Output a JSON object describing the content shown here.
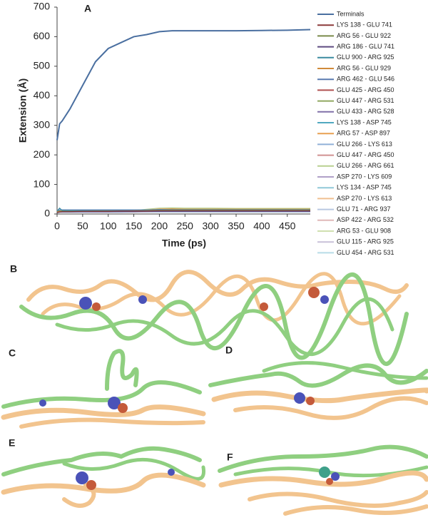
{
  "chart_data": {
    "type": "line",
    "panel_label": "A",
    "x_label": "Time (ps)",
    "y_label": "Extension (Å)",
    "xlim": [
      0,
      495
    ],
    "xticks": [
      0,
      50,
      100,
      150,
      200,
      250,
      300,
      350,
      400,
      450
    ],
    "ylim": [
      0,
      700
    ],
    "yticks": [
      0,
      100,
      200,
      300,
      400,
      500,
      600,
      700
    ],
    "x": [
      0,
      5,
      10,
      25,
      50,
      75,
      100,
      125,
      150,
      175,
      200,
      225,
      250,
      300,
      350,
      400,
      450,
      495
    ],
    "series": [
      {
        "name": "Terminals",
        "color": "#4a6fa0",
        "values": [
          250,
          305,
          315,
          355,
          435,
          515,
          560,
          580,
          600,
          607,
          617,
          620,
          620,
          620,
          620,
          621,
          622,
          624
        ]
      },
      {
        "name": "LYS 138 - GLU 741",
        "color": "#8b3a3a",
        "values": [
          5,
          7,
          8,
          8,
          9,
          9,
          9,
          10,
          10,
          10,
          11,
          11,
          11,
          11,
          11,
          11,
          11,
          11
        ]
      },
      {
        "name": "ARG 56 - GLU 922",
        "color": "#7a8a4a",
        "values": [
          6,
          8,
          9,
          9,
          9,
          10,
          10,
          10,
          10,
          11,
          12,
          12,
          12,
          12,
          12,
          12,
          12,
          12
        ]
      },
      {
        "name": "ARG 186 - GLU 741",
        "color": "#5e4a80",
        "values": [
          4,
          6,
          7,
          7,
          8,
          8,
          8,
          8,
          8,
          9,
          9,
          9,
          9,
          9,
          9,
          9,
          9,
          9
        ]
      },
      {
        "name": "GLU 900 - ARG 925",
        "color": "#3a8aa0",
        "values": [
          10,
          20,
          12,
          11,
          11,
          11,
          11,
          11,
          11,
          12,
          13,
          13,
          13,
          13,
          13,
          13,
          13,
          13
        ]
      },
      {
        "name": "ARG 56 - GLU 929",
        "color": "#d08a3a",
        "values": [
          7,
          9,
          10,
          10,
          10,
          10,
          10,
          10,
          11,
          12,
          13,
          14,
          14,
          14,
          14,
          14,
          14,
          14
        ]
      },
      {
        "name": "ARG 462 - GLU 546",
        "color": "#5a7ab0",
        "values": [
          12,
          14,
          14,
          14,
          14,
          14,
          14,
          14,
          14,
          14,
          15,
          15,
          15,
          15,
          15,
          15,
          15,
          15
        ]
      },
      {
        "name": "GLU 425 - ARG 450",
        "color": "#b05050",
        "values": [
          8,
          9,
          9,
          9,
          9,
          9,
          9,
          9,
          9,
          10,
          10,
          10,
          10,
          10,
          10,
          10,
          10,
          10
        ]
      },
      {
        "name": "GLU 447 - ARG 531",
        "color": "#90a860",
        "values": [
          9,
          10,
          11,
          11,
          11,
          11,
          11,
          11,
          11,
          13,
          15,
          16,
          16,
          16,
          16,
          16,
          16,
          16
        ]
      },
      {
        "name": "GLU 433 - ARG 528",
        "color": "#8070a8",
        "values": [
          6,
          7,
          7,
          7,
          7,
          7,
          7,
          8,
          8,
          8,
          9,
          9,
          9,
          9,
          9,
          9,
          9,
          9
        ]
      },
      {
        "name": "LYS 138 - ASP 745",
        "color": "#50a8c0",
        "values": [
          11,
          12,
          12,
          12,
          12,
          12,
          12,
          12,
          12,
          13,
          13,
          13,
          13,
          13,
          13,
          13,
          13,
          13
        ]
      },
      {
        "name": "ARG 57 - ASP 897",
        "color": "#e8a050",
        "values": [
          8,
          9,
          9,
          9,
          9,
          9,
          10,
          10,
          10,
          14,
          17,
          18,
          17,
          17,
          17,
          17,
          17,
          17
        ]
      },
      {
        "name": "GLU 266 - LYS 613",
        "color": "#90b0d8",
        "values": [
          5,
          6,
          6,
          6,
          6,
          6,
          6,
          6,
          7,
          7,
          7,
          7,
          7,
          7,
          7,
          7,
          7,
          7
        ]
      },
      {
        "name": "GLU 447 - ARG 450",
        "color": "#d09090",
        "values": [
          7,
          8,
          8,
          8,
          8,
          8,
          8,
          8,
          8,
          9,
          9,
          9,
          9,
          9,
          9,
          9,
          9,
          9
        ]
      },
      {
        "name": "GLU 266 - ARG 661",
        "color": "#b8d090",
        "values": [
          9,
          10,
          10,
          10,
          10,
          10,
          10,
          11,
          12,
          16,
          20,
          21,
          20,
          20,
          19,
          19,
          19,
          19
        ]
      },
      {
        "name": "ASP 270 - LYS 609",
        "color": "#b0a0c8",
        "values": [
          6,
          7,
          7,
          7,
          7,
          7,
          7,
          7,
          7,
          8,
          8,
          8,
          8,
          8,
          8,
          8,
          8,
          8
        ]
      },
      {
        "name": "LYS 134 - ASP 745",
        "color": "#90c8d8",
        "values": [
          13,
          14,
          14,
          14,
          14,
          14,
          14,
          14,
          14,
          14,
          14,
          14,
          14,
          14,
          14,
          14,
          14,
          14
        ]
      },
      {
        "name": "ASP 270 - LYS 613",
        "color": "#f0c090",
        "values": [
          7,
          8,
          8,
          8,
          8,
          8,
          8,
          8,
          9,
          11,
          13,
          14,
          14,
          14,
          14,
          14,
          14,
          14
        ]
      },
      {
        "name": "GLU 71 - ARG 937",
        "color": "#b8c8e0",
        "values": [
          10,
          11,
          11,
          11,
          11,
          11,
          11,
          11,
          11,
          12,
          12,
          12,
          12,
          12,
          12,
          12,
          12,
          12
        ]
      },
      {
        "name": "ASP 422 - ARG 532",
        "color": "#e0b8b8",
        "values": [
          5,
          6,
          6,
          6,
          6,
          6,
          6,
          6,
          6,
          7,
          7,
          7,
          7,
          7,
          7,
          7,
          7,
          7
        ]
      },
      {
        "name": "ARG 53 - GLU 908",
        "color": "#d0e0b0",
        "values": [
          8,
          9,
          9,
          9,
          9,
          9,
          9,
          9,
          10,
          12,
          15,
          16,
          16,
          16,
          16,
          16,
          16,
          16
        ]
      },
      {
        "name": "GLU 115 - ARG 925",
        "color": "#c8c0d8",
        "values": [
          6,
          7,
          7,
          7,
          7,
          7,
          7,
          7,
          7,
          8,
          8,
          8,
          8,
          8,
          8,
          8,
          8,
          8
        ]
      },
      {
        "name": "GLU 454 - ARG 531",
        "color": "#b8dce8",
        "values": [
          11,
          12,
          12,
          12,
          12,
          12,
          12,
          12,
          12,
          12,
          12,
          12,
          12,
          12,
          12,
          12,
          12,
          12
        ]
      }
    ]
  },
  "panels": [
    {
      "label": "B"
    },
    {
      "label": "C"
    },
    {
      "label": "D"
    },
    {
      "label": "E"
    },
    {
      "label": "F"
    }
  ]
}
